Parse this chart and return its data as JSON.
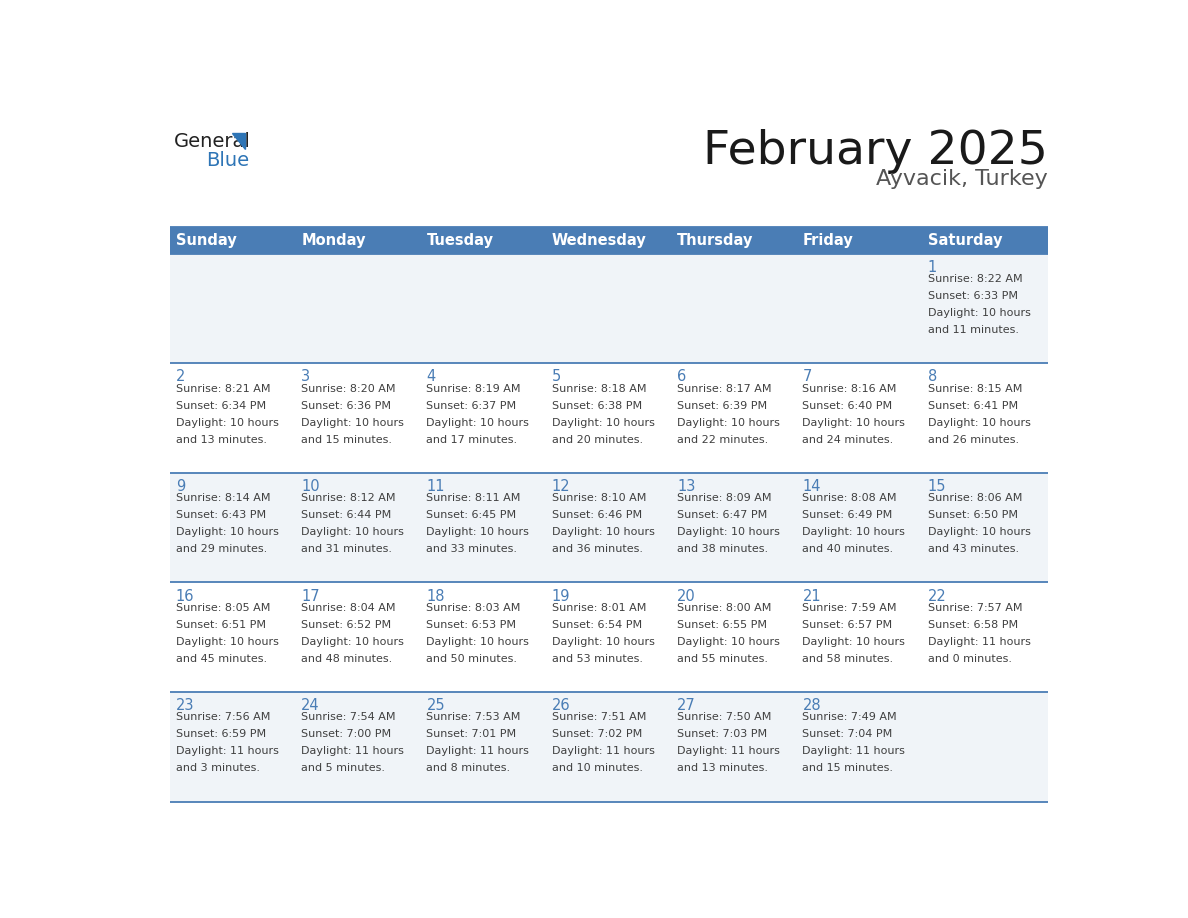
{
  "title": "February 2025",
  "subtitle": "Ayvacik, Turkey",
  "days_of_week": [
    "Sunday",
    "Monday",
    "Tuesday",
    "Wednesday",
    "Thursday",
    "Friday",
    "Saturday"
  ],
  "header_bg": "#4A7DB5",
  "header_text_color": "#FFFFFF",
  "row_bg_odd": "#F0F4F8",
  "row_bg_even": "#FFFFFF",
  "cell_border_color": "#4A7DB5",
  "day_number_color": "#4A7DB5",
  "info_text_color": "#404040",
  "title_color": "#1a1a1a",
  "subtitle_color": "#555555",
  "logo_general_color": "#222222",
  "logo_blue_color": "#2E75B6",
  "calendar_data": [
    [
      {
        "day": null,
        "sunrise": null,
        "sunset": null,
        "daylight": null
      },
      {
        "day": null,
        "sunrise": null,
        "sunset": null,
        "daylight": null
      },
      {
        "day": null,
        "sunrise": null,
        "sunset": null,
        "daylight": null
      },
      {
        "day": null,
        "sunrise": null,
        "sunset": null,
        "daylight": null
      },
      {
        "day": null,
        "sunrise": null,
        "sunset": null,
        "daylight": null
      },
      {
        "day": null,
        "sunrise": null,
        "sunset": null,
        "daylight": null
      },
      {
        "day": 1,
        "sunrise": "8:22 AM",
        "sunset": "6:33 PM",
        "daylight": "10 hours\nand 11 minutes."
      }
    ],
    [
      {
        "day": 2,
        "sunrise": "8:21 AM",
        "sunset": "6:34 PM",
        "daylight": "10 hours\nand 13 minutes."
      },
      {
        "day": 3,
        "sunrise": "8:20 AM",
        "sunset": "6:36 PM",
        "daylight": "10 hours\nand 15 minutes."
      },
      {
        "day": 4,
        "sunrise": "8:19 AM",
        "sunset": "6:37 PM",
        "daylight": "10 hours\nand 17 minutes."
      },
      {
        "day": 5,
        "sunrise": "8:18 AM",
        "sunset": "6:38 PM",
        "daylight": "10 hours\nand 20 minutes."
      },
      {
        "day": 6,
        "sunrise": "8:17 AM",
        "sunset": "6:39 PM",
        "daylight": "10 hours\nand 22 minutes."
      },
      {
        "day": 7,
        "sunrise": "8:16 AM",
        "sunset": "6:40 PM",
        "daylight": "10 hours\nand 24 minutes."
      },
      {
        "day": 8,
        "sunrise": "8:15 AM",
        "sunset": "6:41 PM",
        "daylight": "10 hours\nand 26 minutes."
      }
    ],
    [
      {
        "day": 9,
        "sunrise": "8:14 AM",
        "sunset": "6:43 PM",
        "daylight": "10 hours\nand 29 minutes."
      },
      {
        "day": 10,
        "sunrise": "8:12 AM",
        "sunset": "6:44 PM",
        "daylight": "10 hours\nand 31 minutes."
      },
      {
        "day": 11,
        "sunrise": "8:11 AM",
        "sunset": "6:45 PM",
        "daylight": "10 hours\nand 33 minutes."
      },
      {
        "day": 12,
        "sunrise": "8:10 AM",
        "sunset": "6:46 PM",
        "daylight": "10 hours\nand 36 minutes."
      },
      {
        "day": 13,
        "sunrise": "8:09 AM",
        "sunset": "6:47 PM",
        "daylight": "10 hours\nand 38 minutes."
      },
      {
        "day": 14,
        "sunrise": "8:08 AM",
        "sunset": "6:49 PM",
        "daylight": "10 hours\nand 40 minutes."
      },
      {
        "day": 15,
        "sunrise": "8:06 AM",
        "sunset": "6:50 PM",
        "daylight": "10 hours\nand 43 minutes."
      }
    ],
    [
      {
        "day": 16,
        "sunrise": "8:05 AM",
        "sunset": "6:51 PM",
        "daylight": "10 hours\nand 45 minutes."
      },
      {
        "day": 17,
        "sunrise": "8:04 AM",
        "sunset": "6:52 PM",
        "daylight": "10 hours\nand 48 minutes."
      },
      {
        "day": 18,
        "sunrise": "8:03 AM",
        "sunset": "6:53 PM",
        "daylight": "10 hours\nand 50 minutes."
      },
      {
        "day": 19,
        "sunrise": "8:01 AM",
        "sunset": "6:54 PM",
        "daylight": "10 hours\nand 53 minutes."
      },
      {
        "day": 20,
        "sunrise": "8:00 AM",
        "sunset": "6:55 PM",
        "daylight": "10 hours\nand 55 minutes."
      },
      {
        "day": 21,
        "sunrise": "7:59 AM",
        "sunset": "6:57 PM",
        "daylight": "10 hours\nand 58 minutes."
      },
      {
        "day": 22,
        "sunrise": "7:57 AM",
        "sunset": "6:58 PM",
        "daylight": "11 hours\nand 0 minutes."
      }
    ],
    [
      {
        "day": 23,
        "sunrise": "7:56 AM",
        "sunset": "6:59 PM",
        "daylight": "11 hours\nand 3 minutes."
      },
      {
        "day": 24,
        "sunrise": "7:54 AM",
        "sunset": "7:00 PM",
        "daylight": "11 hours\nand 5 minutes."
      },
      {
        "day": 25,
        "sunrise": "7:53 AM",
        "sunset": "7:01 PM",
        "daylight": "11 hours\nand 8 minutes."
      },
      {
        "day": 26,
        "sunrise": "7:51 AM",
        "sunset": "7:02 PM",
        "daylight": "11 hours\nand 10 minutes."
      },
      {
        "day": 27,
        "sunrise": "7:50 AM",
        "sunset": "7:03 PM",
        "daylight": "11 hours\nand 13 minutes."
      },
      {
        "day": 28,
        "sunrise": "7:49 AM",
        "sunset": "7:04 PM",
        "daylight": "11 hours\nand 15 minutes."
      },
      {
        "day": null,
        "sunrise": null,
        "sunset": null,
        "daylight": null
      }
    ]
  ]
}
